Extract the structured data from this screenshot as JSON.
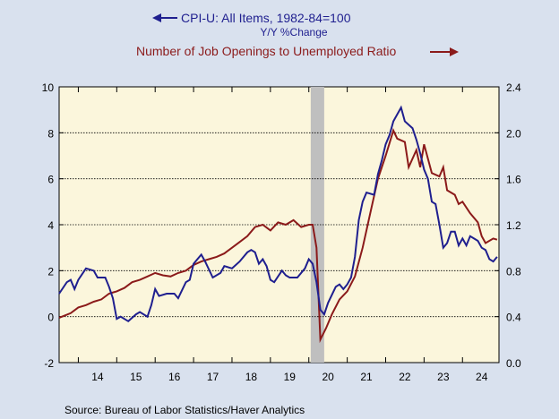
{
  "chart_data": {
    "type": "line",
    "title_line1": "CPI-U: All Items, 1982-84=100",
    "title_line2": "Y/Y %Change",
    "title_line3": "Number of Job Openings to Unemployed Ratio",
    "source": "Source:  Bureau of Labor Statistics/Haver Analytics",
    "x_categories": [
      "14",
      "15",
      "16",
      "17",
      "18",
      "19",
      "20",
      "21",
      "22",
      "23",
      "24"
    ],
    "x_range": [
      2013.5,
      2024.95
    ],
    "left_axis": {
      "ylim": [
        -2,
        10
      ],
      "ticks": [
        "-2",
        "0",
        "2",
        "4",
        "6",
        "8",
        "10"
      ],
      "tick_values": [
        -2,
        0,
        2,
        4,
        6,
        8,
        10
      ]
    },
    "right_axis": {
      "ylim": [
        0.0,
        2.4
      ],
      "ticks": [
        "0.0",
        "0.4",
        "0.8",
        "1.2",
        "1.6",
        "2.0",
        "2.4"
      ],
      "tick_values": [
        0.0,
        0.4,
        0.8,
        1.2,
        1.6,
        2.0,
        2.4
      ]
    },
    "grid": true,
    "recession_shading": [
      2020.05,
      2020.4
    ],
    "colors": {
      "cpi": "#1f1f8f",
      "ratio": "#8b1a1a",
      "grid": "#000000",
      "plot_bg": "#fbf6dc",
      "recession": "#bfbfbf"
    },
    "series": [
      {
        "name": "CPI-U: All Items, 1982-84=100",
        "axis": "left",
        "points": [
          [
            2013.5,
            1.0
          ],
          [
            2013.7,
            1.5
          ],
          [
            2013.8,
            1.6
          ],
          [
            2013.9,
            1.2
          ],
          [
            2014.0,
            1.6
          ],
          [
            2014.2,
            2.1
          ],
          [
            2014.4,
            2.0
          ],
          [
            2014.5,
            1.7
          ],
          [
            2014.7,
            1.7
          ],
          [
            2014.8,
            1.3
          ],
          [
            2014.9,
            0.8
          ],
          [
            2015.0,
            -0.1
          ],
          [
            2015.1,
            0.0
          ],
          [
            2015.3,
            -0.2
          ],
          [
            2015.5,
            0.1
          ],
          [
            2015.6,
            0.2
          ],
          [
            2015.8,
            0.0
          ],
          [
            2015.9,
            0.5
          ],
          [
            2016.0,
            1.2
          ],
          [
            2016.1,
            0.9
          ],
          [
            2016.3,
            1.0
          ],
          [
            2016.5,
            1.0
          ],
          [
            2016.6,
            0.8
          ],
          [
            2016.8,
            1.5
          ],
          [
            2016.9,
            1.6
          ],
          [
            2017.0,
            2.3
          ],
          [
            2017.2,
            2.7
          ],
          [
            2017.3,
            2.4
          ],
          [
            2017.5,
            1.7
          ],
          [
            2017.7,
            1.9
          ],
          [
            2017.8,
            2.2
          ],
          [
            2018.0,
            2.1
          ],
          [
            2018.2,
            2.4
          ],
          [
            2018.4,
            2.8
          ],
          [
            2018.5,
            2.9
          ],
          [
            2018.6,
            2.8
          ],
          [
            2018.7,
            2.3
          ],
          [
            2018.8,
            2.5
          ],
          [
            2018.9,
            2.2
          ],
          [
            2019.0,
            1.6
          ],
          [
            2019.1,
            1.5
          ],
          [
            2019.3,
            2.0
          ],
          [
            2019.4,
            1.8
          ],
          [
            2019.5,
            1.7
          ],
          [
            2019.7,
            1.7
          ],
          [
            2019.9,
            2.1
          ],
          [
            2020.0,
            2.5
          ],
          [
            2020.1,
            2.3
          ],
          [
            2020.2,
            1.5
          ],
          [
            2020.3,
            0.3
          ],
          [
            2020.4,
            0.1
          ],
          [
            2020.5,
            0.6
          ],
          [
            2020.7,
            1.3
          ],
          [
            2020.8,
            1.4
          ],
          [
            2020.9,
            1.2
          ],
          [
            2021.0,
            1.4
          ],
          [
            2021.1,
            1.7
          ],
          [
            2021.2,
            2.6
          ],
          [
            2021.3,
            4.2
          ],
          [
            2021.4,
            5.0
          ],
          [
            2021.5,
            5.4
          ],
          [
            2021.7,
            5.3
          ],
          [
            2021.8,
            6.2
          ],
          [
            2021.9,
            6.8
          ],
          [
            2022.0,
            7.5
          ],
          [
            2022.1,
            7.9
          ],
          [
            2022.2,
            8.5
          ],
          [
            2022.4,
            9.1
          ],
          [
            2022.5,
            8.5
          ],
          [
            2022.7,
            8.2
          ],
          [
            2022.8,
            7.7
          ],
          [
            2022.9,
            7.1
          ],
          [
            2023.0,
            6.4
          ],
          [
            2023.1,
            6.0
          ],
          [
            2023.2,
            5.0
          ],
          [
            2023.3,
            4.9
          ],
          [
            2023.4,
            4.0
          ],
          [
            2023.5,
            3.0
          ],
          [
            2023.6,
            3.2
          ],
          [
            2023.7,
            3.7
          ],
          [
            2023.8,
            3.7
          ],
          [
            2023.9,
            3.1
          ],
          [
            2024.0,
            3.4
          ],
          [
            2024.1,
            3.1
          ],
          [
            2024.2,
            3.5
          ],
          [
            2024.3,
            3.4
          ],
          [
            2024.4,
            3.3
          ],
          [
            2024.5,
            3.0
          ],
          [
            2024.6,
            2.9
          ],
          [
            2024.7,
            2.5
          ],
          [
            2024.8,
            2.4
          ],
          [
            2024.9,
            2.6
          ]
        ]
      },
      {
        "name": "Number of Job Openings to Unemployed Ratio",
        "axis": "right",
        "points": [
          [
            2013.5,
            0.39
          ],
          [
            2013.8,
            0.43
          ],
          [
            2014.0,
            0.48
          ],
          [
            2014.2,
            0.5
          ],
          [
            2014.4,
            0.53
          ],
          [
            2014.6,
            0.55
          ],
          [
            2014.8,
            0.6
          ],
          [
            2015.0,
            0.62
          ],
          [
            2015.2,
            0.65
          ],
          [
            2015.4,
            0.7
          ],
          [
            2015.6,
            0.72
          ],
          [
            2015.8,
            0.75
          ],
          [
            2016.0,
            0.78
          ],
          [
            2016.2,
            0.76
          ],
          [
            2016.4,
            0.75
          ],
          [
            2016.6,
            0.78
          ],
          [
            2016.8,
            0.8
          ],
          [
            2017.0,
            0.85
          ],
          [
            2017.2,
            0.88
          ],
          [
            2017.4,
            0.9
          ],
          [
            2017.6,
            0.92
          ],
          [
            2017.8,
            0.95
          ],
          [
            2018.0,
            1.0
          ],
          [
            2018.2,
            1.05
          ],
          [
            2018.4,
            1.1
          ],
          [
            2018.6,
            1.18
          ],
          [
            2018.8,
            1.2
          ],
          [
            2019.0,
            1.15
          ],
          [
            2019.2,
            1.22
          ],
          [
            2019.4,
            1.2
          ],
          [
            2019.6,
            1.24
          ],
          [
            2019.8,
            1.18
          ],
          [
            2020.0,
            1.2
          ],
          [
            2020.1,
            1.2
          ],
          [
            2020.2,
            1.0
          ],
          [
            2020.3,
            0.2
          ],
          [
            2020.45,
            0.3
          ],
          [
            2020.6,
            0.42
          ],
          [
            2020.8,
            0.55
          ],
          [
            2021.0,
            0.62
          ],
          [
            2021.2,
            0.75
          ],
          [
            2021.4,
            1.0
          ],
          [
            2021.6,
            1.3
          ],
          [
            2021.8,
            1.6
          ],
          [
            2022.0,
            1.8
          ],
          [
            2022.2,
            2.02
          ],
          [
            2022.3,
            1.95
          ],
          [
            2022.5,
            1.92
          ],
          [
            2022.6,
            1.7
          ],
          [
            2022.8,
            1.85
          ],
          [
            2022.9,
            1.7
          ],
          [
            2023.0,
            1.9
          ],
          [
            2023.2,
            1.65
          ],
          [
            2023.4,
            1.62
          ],
          [
            2023.5,
            1.7
          ],
          [
            2023.6,
            1.5
          ],
          [
            2023.8,
            1.46
          ],
          [
            2023.9,
            1.38
          ],
          [
            2024.0,
            1.4
          ],
          [
            2024.2,
            1.3
          ],
          [
            2024.4,
            1.22
          ],
          [
            2024.5,
            1.1
          ],
          [
            2024.6,
            1.04
          ],
          [
            2024.8,
            1.08
          ],
          [
            2024.9,
            1.07
          ]
        ]
      }
    ]
  }
}
